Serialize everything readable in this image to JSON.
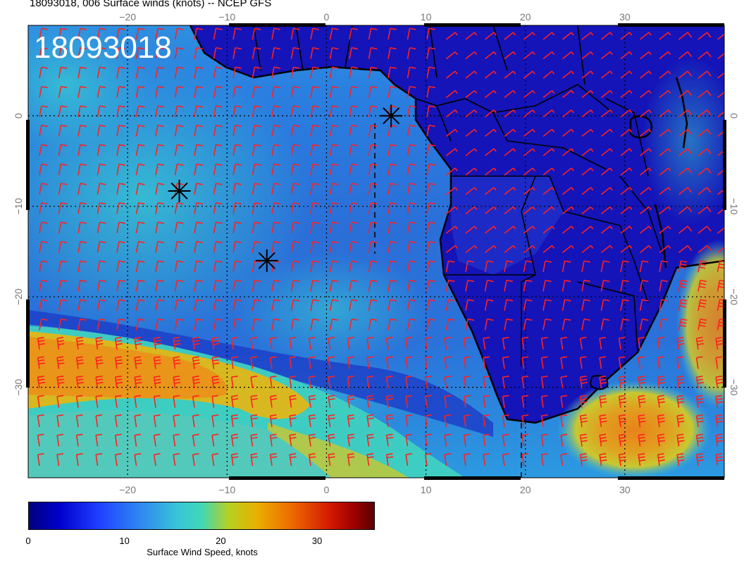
{
  "title": "18093018, 006 Surface winds (knots) -- NCEP GFS",
  "stamp": "18093018",
  "map": {
    "lon_range": [
      -30,
      40
    ],
    "lat_range": [
      -40,
      10
    ],
    "projection": "cylindrical equidistant",
    "grid": "dotted every 10 degrees",
    "lon_ticks": [
      "−20",
      "−10",
      "0",
      "10",
      "20",
      "30"
    ],
    "lat_ticks": [
      "0",
      "−10",
      "−20",
      "−30"
    ],
    "storm_markers": [
      {
        "lon": -14.8,
        "lat": -8.3
      },
      {
        "lon": -6.0,
        "lat": -16.0
      },
      {
        "lon": 6.5,
        "lat": 0.0
      }
    ],
    "barb_color": "#ff2020",
    "coast_color": "#000000"
  },
  "colorbar": {
    "label": "Surface Wind Speed, knots",
    "ticks": [
      "0",
      "10",
      "20",
      "30"
    ],
    "tick_values": [
      0,
      10,
      20,
      30
    ],
    "range": [
      0,
      36
    ],
    "colors": [
      "#00007f",
      "#0000cc",
      "#1f3fff",
      "#2f86f0",
      "#38c4d8",
      "#3fd8b8",
      "#b8d020",
      "#e8b000",
      "#ec6b00",
      "#d41a00",
      "#a00000",
      "#5a0000"
    ]
  }
}
